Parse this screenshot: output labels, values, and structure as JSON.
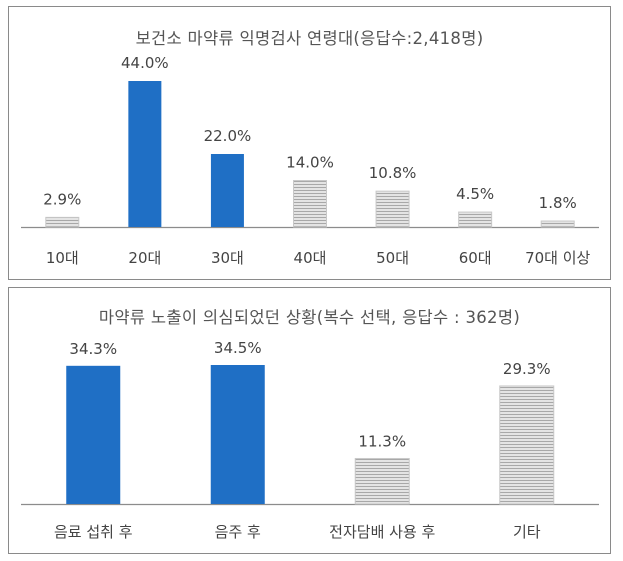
{
  "colors": {
    "highlight": "#1f6fc5",
    "muted_fill": "#e4e4e4",
    "muted_stripe": "#a8a8a8",
    "axis": "#8c8c8c",
    "text": "#444444"
  },
  "chart_data": [
    {
      "type": "bar",
      "title": "보건소 마약류 익명검사 연령대(응답수:2,418명)",
      "categories": [
        "10대",
        "20대",
        "30대",
        "40대",
        "50대",
        "60대",
        "70대 이상"
      ],
      "values": [
        2.9,
        44.0,
        22.0,
        14.0,
        10.8,
        4.5,
        1.8
      ],
      "value_labels": [
        "2.9%",
        "44.0%",
        "22.0%",
        "14.0%",
        "10.8%",
        "4.5%",
        "1.8%"
      ],
      "highlighted": [
        false,
        true,
        true,
        false,
        false,
        false,
        false
      ],
      "unit": "%",
      "ylim": [
        0,
        44.0
      ],
      "grid": false,
      "legend": "none"
    },
    {
      "type": "bar",
      "title": "마약류 노출이 의심되었던 상황(복수 선택, 응답수 : 362명)",
      "categories": [
        "음료 섭취 후",
        "음주 후",
        "전자담배 사용 후",
        "기타"
      ],
      "values": [
        34.3,
        34.5,
        11.3,
        29.3
      ],
      "value_labels": [
        "34.3%",
        "34.5%",
        "11.3%",
        "29.3%"
      ],
      "highlighted": [
        true,
        true,
        false,
        false
      ],
      "unit": "%",
      "ylim": [
        0,
        34.5
      ],
      "grid": false,
      "legend": "none"
    }
  ]
}
